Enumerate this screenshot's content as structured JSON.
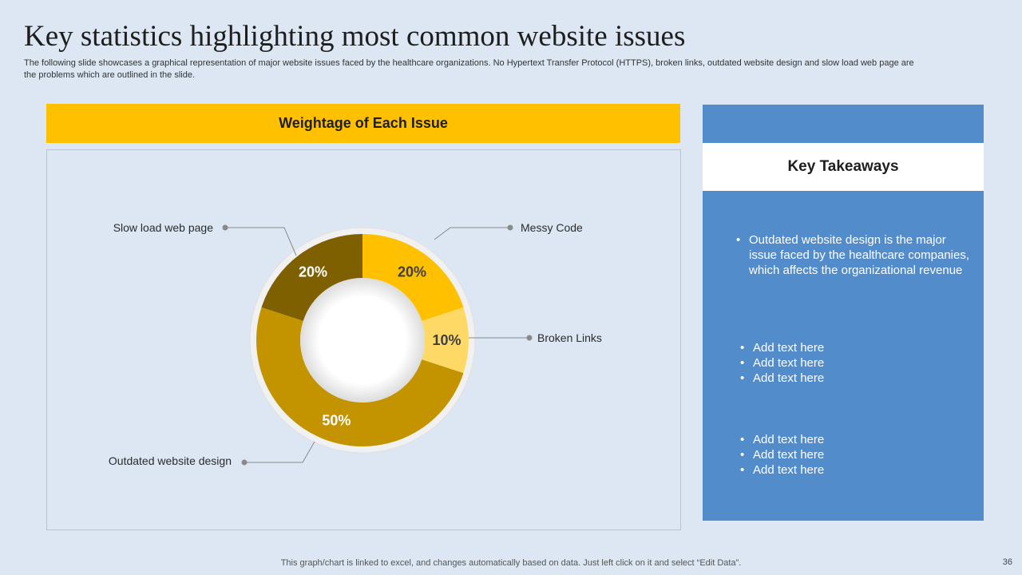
{
  "slide": {
    "title": "Key statistics highlighting most common website issues",
    "subtitle": "The following slide showcases a graphical representation of major website issues faced by the healthcare organizations. No Hypertext Transfer Protocol (HTTPS), broken links, outdated website design and slow load web page are the problems which are outlined in the slide.",
    "footer_note": "This graph/chart is linked to excel, and changes automatically based on data. Just left click on it and select “Edit Data”.",
    "page_number": "36"
  },
  "chart_header": "Weightage of Each Issue",
  "chart_data": {
    "type": "pie",
    "donut": true,
    "slices": [
      {
        "label": "Messy Code",
        "value": 20,
        "display": "20%",
        "color": "#ffc000"
      },
      {
        "label": "Broken Links",
        "value": 10,
        "display": "10%",
        "color": "#ffd966"
      },
      {
        "label": "Outdated website design",
        "value": 50,
        "display": "50%",
        "color": "#c49400"
      },
      {
        "label": "Slow load web page",
        "value": 20,
        "display": "20%",
        "color": "#7f6000"
      }
    ]
  },
  "takeaways": {
    "heading": "Key Takeaways",
    "group1": [
      "Outdated website design is the major issue faced by the healthcare companies, which affects the organizational revenue"
    ],
    "group2": [
      "Add text here",
      "Add text here",
      "Add text here"
    ],
    "group3": [
      "Add text here",
      "Add text here",
      "Add text here"
    ]
  },
  "colors": {
    "background": "#dce7f3",
    "accent_yellow": "#ffc000",
    "panel_blue": "#538ccb"
  }
}
